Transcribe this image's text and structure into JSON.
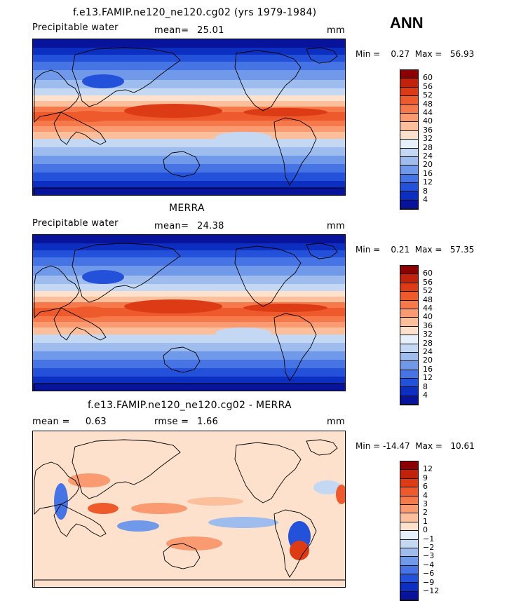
{
  "season": "ANN",
  "panels": [
    {
      "title": "f.e13.FAMIP.ne120_ne120.cg02 (yrs 1979-1984)",
      "variable": "Precipitable water",
      "stat_label": "mean=",
      "stat_value": "25.01",
      "units": "mm",
      "minmax": "Min =    0.27  Max =   56.93",
      "kind": "field"
    },
    {
      "title": "MERRA",
      "variable": "Precipitable water",
      "stat_label": "mean=",
      "stat_value": "24.38",
      "units": "mm",
      "minmax": "Min =    0.21  Max =   57.35",
      "kind": "field"
    },
    {
      "title": "f.e13.FAMIP.ne120_ne120.cg02 - MERRA",
      "variable": "mean =     0.63",
      "stat_label": "rmse =",
      "stat_value": "1.66",
      "units": "mm",
      "minmax": "Min = -14.47  Max =   10.61",
      "kind": "diff"
    }
  ],
  "field_scale": {
    "labels": [
      "60",
      "56",
      "52",
      "48",
      "44",
      "40",
      "36",
      "32",
      "28",
      "24",
      "20",
      "16",
      "12",
      "8",
      "4"
    ],
    "colors": [
      "#8b0000",
      "#c0220c",
      "#dd3b16",
      "#ee5a2c",
      "#f5794a",
      "#f99a70",
      "#fbbf9c",
      "#fde1cc",
      "#e6f0fa",
      "#c4d8f4",
      "#9fbcef",
      "#7199ea",
      "#4774e4",
      "#2451d9",
      "#0c2ec1",
      "#06139a"
    ]
  },
  "diff_scale": {
    "labels": [
      "12",
      "9",
      "6",
      "4",
      "3",
      "2",
      "1",
      "0",
      "−1",
      "−2",
      "−3",
      "−4",
      "−6",
      "−9",
      "−12"
    ],
    "colors": [
      "#8b0000",
      "#c0220c",
      "#dd3b16",
      "#ee5a2c",
      "#f5794a",
      "#f99a70",
      "#fbbf9c",
      "#fde1cc",
      "#e6f0fa",
      "#c4d8f4",
      "#9fbcef",
      "#7199ea",
      "#4774e4",
      "#2451d9",
      "#0c2ec1",
      "#06139a"
    ]
  }
}
